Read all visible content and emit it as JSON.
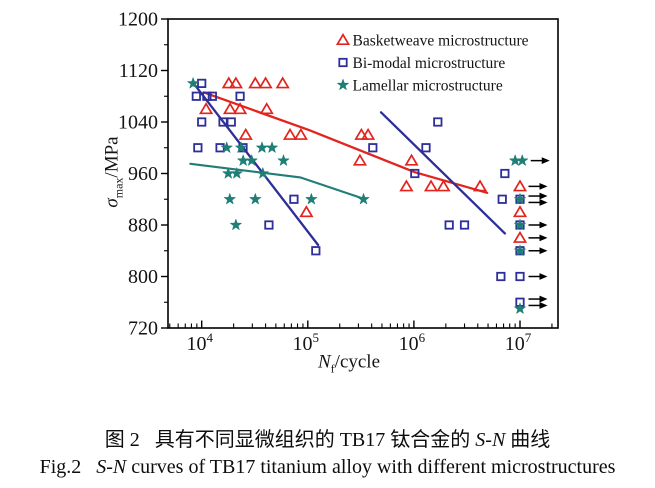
{
  "chart_data": {
    "type": "scatter",
    "title": "",
    "x_scale": "log",
    "xlim": [
      4800,
      23000000
    ],
    "ylim": [
      720,
      1200
    ],
    "grid": false,
    "legend_position": "top-right-inside",
    "xlabel": {
      "sym": "N",
      "sub": "f",
      "rest": "/cycle"
    },
    "ylabel": {
      "sym": "σ",
      "sub": "max",
      "rest": "/MPa"
    },
    "y_ticks": [
      1200,
      1120,
      1040,
      960,
      880,
      800,
      720
    ],
    "y_minor_ticks": [
      1160,
      1080,
      1000,
      920,
      840,
      760
    ],
    "x_ticks": [
      {
        "base": "10",
        "exp": "4",
        "value": 10000
      },
      {
        "base": "10",
        "exp": "5",
        "value": 100000
      },
      {
        "base": "10",
        "exp": "6",
        "value": 1000000
      },
      {
        "base": "10",
        "exp": "7",
        "value": 10000000
      }
    ],
    "frame_color": "#000000",
    "runout_arrow_color": "#000000",
    "series": [
      {
        "name": "Basketweave microstructure",
        "slug": "basketweave",
        "marker": "triangle",
        "color": "#e3231d",
        "points": [
          [
            11000,
            1060
          ],
          [
            18000,
            1100
          ],
          [
            21000,
            1100
          ],
          [
            18500,
            1060
          ],
          [
            23000,
            1060
          ],
          [
            26000,
            1020
          ],
          [
            32000,
            1100
          ],
          [
            40000,
            1100
          ],
          [
            41000,
            1060
          ],
          [
            58000,
            1100
          ],
          [
            68000,
            1020
          ],
          [
            86000,
            1020
          ],
          [
            97000,
            900
          ],
          [
            310000,
            980
          ],
          [
            320000,
            1020
          ],
          [
            370000,
            1020
          ],
          [
            850000,
            940
          ],
          [
            950000,
            980
          ],
          [
            1450000,
            940
          ],
          [
            1900000,
            940
          ],
          [
            4200000,
            940
          ],
          [
            10000000,
            900
          ]
        ],
        "runouts": [
          [
            10000000,
            940,
            1
          ],
          [
            10000000,
            860,
            1
          ]
        ],
        "fit_lines": [
          [
            [
              10500,
              1086
            ],
            [
              105000,
              1027
            ],
            [
              1020000,
              962
            ],
            [
              4900000,
              930
            ]
          ]
        ]
      },
      {
        "name": "Bi-modal microstructure",
        "slug": "bimodal",
        "marker": "square",
        "color": "#2e2e99",
        "points": [
          [
            10000,
            1100
          ],
          [
            8900,
            1080
          ],
          [
            11200,
            1080
          ],
          [
            12600,
            1080
          ],
          [
            23000,
            1080
          ],
          [
            10000,
            1040
          ],
          [
            15900,
            1040
          ],
          [
            19000,
            1040
          ],
          [
            9200,
            1000
          ],
          [
            14900,
            1000
          ],
          [
            24500,
            1000
          ],
          [
            74000,
            920
          ],
          [
            43000,
            880
          ],
          [
            119000,
            840
          ],
          [
            410000,
            1000
          ],
          [
            1300000,
            1000
          ],
          [
            1680000,
            1040
          ],
          [
            1020000,
            960
          ],
          [
            2150000,
            880
          ],
          [
            3000000,
            880
          ],
          [
            7200000,
            960
          ],
          [
            6800000,
            920
          ],
          [
            6600000,
            800
          ]
        ],
        "runouts": [
          [
            10000000,
            920,
            2
          ],
          [
            10000000,
            880,
            1
          ],
          [
            10000000,
            840,
            1
          ],
          [
            10000000,
            800,
            1
          ],
          [
            10000000,
            760,
            2
          ]
        ],
        "fit_lines": [
          [
            [
              8300,
              1101
            ],
            [
              125000,
              849
            ]
          ],
          [
            [
              490000,
              1055
            ],
            [
              7200000,
              867
            ]
          ]
        ]
      },
      {
        "name": "Lamellar microstructure",
        "slug": "lamellar",
        "marker": "star",
        "color": "#1f7e76",
        "points": [
          [
            8300,
            1100
          ],
          [
            17200,
            1000
          ],
          [
            23500,
            1000
          ],
          [
            37000,
            1000
          ],
          [
            46000,
            1000
          ],
          [
            24600,
            980
          ],
          [
            29600,
            980
          ],
          [
            59000,
            980
          ],
          [
            17800,
            960
          ],
          [
            21400,
            960
          ],
          [
            37700,
            960
          ],
          [
            18400,
            920
          ],
          [
            32000,
            920
          ],
          [
            108000,
            920
          ],
          [
            335000,
            920
          ],
          [
            21000,
            880
          ],
          [
            10000000,
            750
          ]
        ],
        "runouts": [
          [
            9000000,
            980,
            0
          ],
          [
            10500000,
            980,
            1
          ],
          [
            10000000,
            920,
            0
          ],
          [
            10000000,
            880,
            0
          ],
          [
            10000000,
            840,
            0
          ]
        ],
        "fit_lines": [
          [
            [
              7800,
              975
            ],
            [
              85000,
              954
            ],
            [
              320000,
              922
            ]
          ]
        ]
      }
    ]
  },
  "captions": {
    "chinese": {
      "fig_label": "图 2",
      "body": "具有不同显微组织的 TB17 钛合金的 ",
      "italic": "S-N",
      "tail": " 曲线"
    },
    "english": {
      "fig_label": "Fig.2",
      "italic": "S-N",
      "tail": " curves of TB17 titanium alloy with different microstructures"
    }
  }
}
